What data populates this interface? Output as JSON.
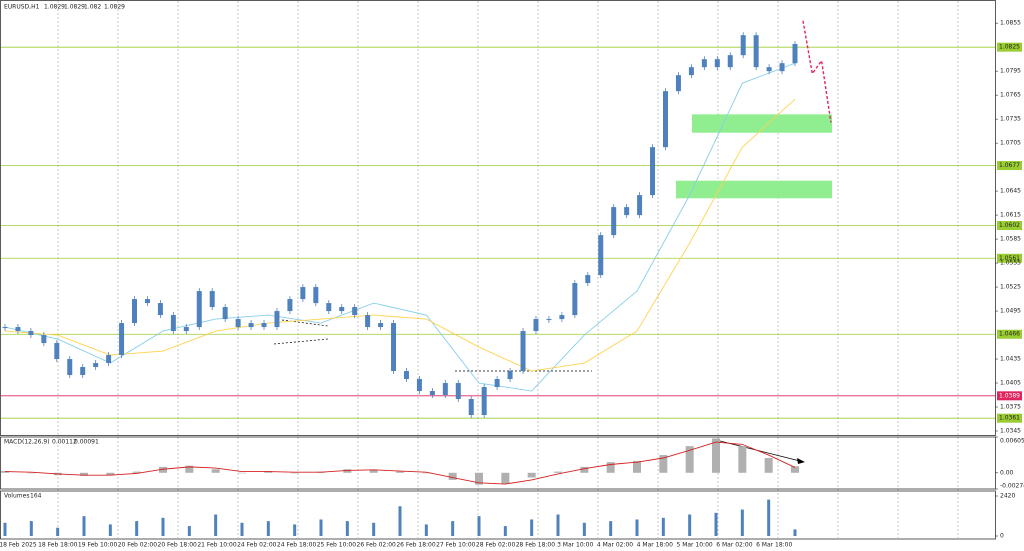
{
  "chart_data": {
    "type": "candlestick",
    "title": "EURUSD,H1",
    "quote": [
      1.0829,
      1.0829,
      1.082,
      1.0829
    ],
    "color": "#4f81bd",
    "closes": [
      1.0475,
      1.047,
      1.0465,
      1.0455,
      1.0435,
      1.0415,
      1.0425,
      1.043,
      1.044,
      1.048,
      1.051,
      1.0505,
      1.049,
      1.047,
      1.0475,
      1.052,
      1.05,
      1.0485,
      1.0475,
      1.048,
      1.0475,
      1.0495,
      1.051,
      1.0525,
      1.0505,
      1.0495,
      1.05,
      1.049,
      1.0475,
      1.048,
      1.042,
      1.041,
      1.0395,
      1.039,
      1.0405,
      1.0385,
      1.0365,
      1.04,
      1.041,
      1.042,
      1.047,
      1.0485,
      1.0485,
      1.049,
      1.053,
      1.054,
      1.059,
      1.0625,
      1.0615,
      1.064,
      1.07,
      1.077,
      1.079,
      1.08,
      1.081,
      1.08,
      1.0815,
      1.084,
      1.08,
      1.0795,
      1.0805,
      1.0829
    ],
    "ylim": [
      1.034,
      1.0884
    ],
    "yticks": [
      1.0855,
      1.0795,
      1.0765,
      1.0735,
      1.0705,
      1.0645,
      1.0615,
      1.0585,
      1.0555,
      1.0525,
      1.0495,
      1.0435,
      1.0405,
      1.0375,
      1.0345
    ],
    "levels": [
      {
        "value": 1.0825,
        "color": "#9acd32"
      },
      {
        "value": 1.0677,
        "color": "#9acd32"
      },
      {
        "value": 1.0602,
        "color": "#9acd32"
      },
      {
        "value": 1.0561,
        "color": "#9acd32"
      },
      {
        "value": 1.0466,
        "color": "#9acd32"
      },
      {
        "value": 1.0389,
        "color": "#e0245e"
      },
      {
        "value": 1.0361,
        "color": "#9acd32"
      }
    ],
    "zones": [
      [
        1.0741,
        1.0718
      ],
      [
        1.0658,
        1.0636
      ]
    ],
    "zone_color": "#90ee90",
    "moving_averages": [
      {
        "color": "#87ceeb",
        "values": [
          1.0475,
          1.046,
          1.043,
          1.047,
          1.0485,
          1.049,
          1.048,
          1.0505,
          1.049,
          1.0405,
          1.0395,
          1.0465,
          1.052,
          1.064,
          1.078,
          1.0805
        ]
      },
      {
        "color": "#ffd24d",
        "values": [
          1.047,
          1.0465,
          1.044,
          1.0445,
          1.047,
          1.048,
          1.0485,
          1.049,
          1.0485,
          1.045,
          1.042,
          1.043,
          1.047,
          1.058,
          1.07,
          1.076
        ]
      }
    ],
    "forecast": {
      "color": "#e0245e",
      "values": [
        1.0858,
        1.0792,
        1.0808,
        1.0731
      ]
    },
    "time_labels": [
      "18 Feb 2025",
      "18 Feb 18:00",
      "19 Feb 10:00",
      "20 Feb 02:00",
      "20 Feb 18:00",
      "21 Feb 10:00",
      "24 Feb 02:00",
      "24 Feb 18:00",
      "25 Feb 10:00",
      "26 Feb 02:00",
      "26 Feb 18:00",
      "27 Feb 10:00",
      "28 Feb 02:00",
      "28 Feb 18:00",
      "3 Mar 10:00",
      "4 Mar 02:00",
      "4 Mar 18:00",
      "5 Mar 10:00",
      "6 Mar 02:00",
      "6 Mar 18:00"
    ],
    "macd": {
      "title": "MACD(12,26,9)",
      "readout": [
        0.00112,
        0.00091
      ],
      "histogram_color": "#b0b0b0",
      "signal_color": "#d62020",
      "values": [
        0.0003,
        0.0,
        -0.0004,
        -0.0005,
        -0.0004,
        0.0002,
        0.001,
        0.0012,
        0.0006,
        0.0,
        0.0003,
        0.0,
        0.0002,
        0.0006,
        0.0005,
        0.0002,
        0.0,
        -0.0012,
        -0.002,
        -0.0018,
        -0.0008,
        0.0002,
        0.001,
        0.0018,
        0.002,
        0.003,
        0.0045,
        0.0058,
        0.0045,
        0.0025,
        0.0011
      ],
      "signal": [
        0.0002,
        0.0001,
        -0.0002,
        -0.0004,
        -0.0004,
        -0.0001,
        0.0006,
        0.001,
        0.0008,
        0.0002,
        0.0002,
        0.0001,
        0.0001,
        0.0004,
        0.0005,
        0.0003,
        0.0001,
        -0.0008,
        -0.0017,
        -0.0019,
        -0.0012,
        -0.0002,
        0.0007,
        0.0014,
        0.0018,
        0.0025,
        0.0038,
        0.0052,
        0.0048,
        0.003,
        0.0009
      ],
      "ylim": [
        -0.00274,
        0.00605
      ],
      "yticks": [
        0.00605,
        {
          "value": 0,
          "label": "0.00"
        },
        -0.00274
      ]
    },
    "volumes": {
      "title": "Volumes",
      "readout": 164,
      "color": "#4f81bd",
      "values": [
        800,
        900,
        500,
        1200,
        700,
        900,
        1100,
        600,
        1300,
        800,
        900,
        700,
        1000,
        900,
        800,
        1800,
        700,
        900,
        1200,
        600,
        1000,
        1300,
        800,
        900,
        1000,
        1100,
        1300,
        1400,
        1600,
        2200,
        400
      ],
      "ylim": [
        0,
        2420
      ],
      "yticks": [
        2420,
        0
      ]
    }
  }
}
